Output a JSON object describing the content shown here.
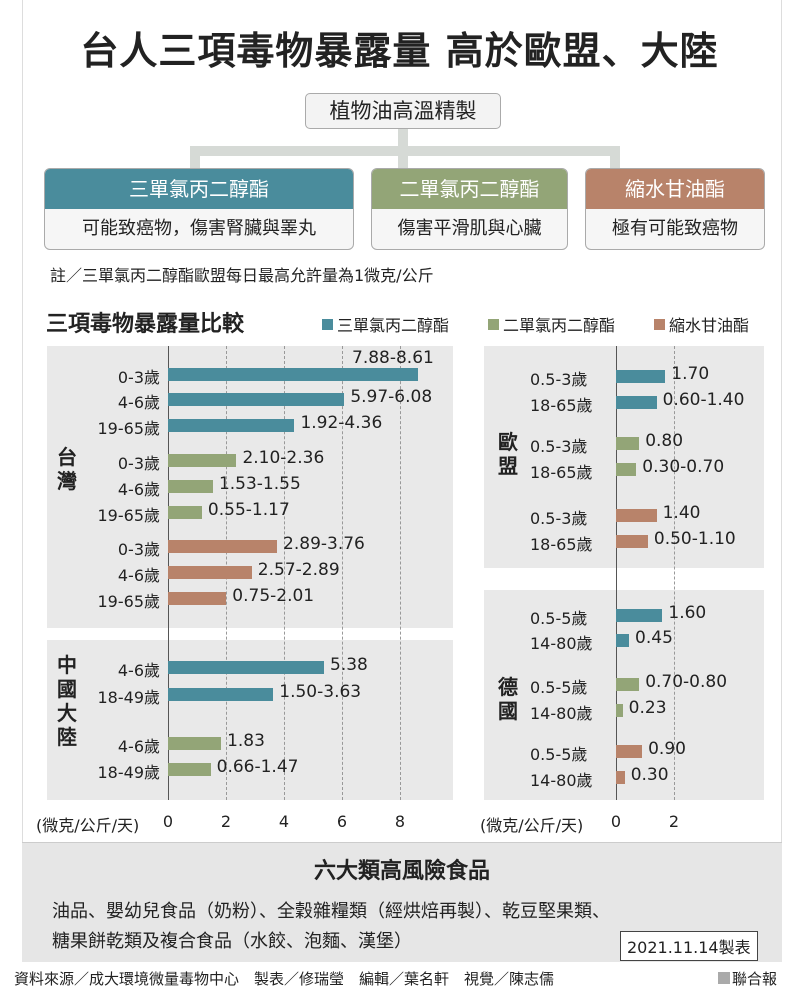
{
  "title": "台人三項毒物暴露量 高於歐盟、大陸",
  "root": "植物油高溫精製",
  "toxins": [
    {
      "name": "三單氯丙二醇酯",
      "effect": "可能致癌物，傷害腎臟與睪丸",
      "color": "#4a8c9c"
    },
    {
      "name": "二單氯丙二醇酯",
      "effect": "傷害平滑肌與心臟",
      "color": "#93a577"
    },
    {
      "name": "縮水甘油酯",
      "effect": "極有可能致癌物",
      "color": "#b8836a"
    }
  ],
  "note": "註／三單氯丙二醇酯歐盟每日最高允許量為1微克/公斤",
  "chart_data": {
    "type": "bar",
    "title": "三項毒物暴露量比較",
    "legend": [
      "三單氯丙二醇酯",
      "二單氯丙二醇酯",
      "縮水甘油酯"
    ],
    "xlabel": "(微克/公斤/天)",
    "panels": [
      {
        "xlim": [
          0,
          8.7
        ],
        "ticks": [
          "0",
          "2",
          "4",
          "6",
          "8"
        ],
        "regions": [
          {
            "name": "台灣",
            "groups": [
              {
                "series": 0,
                "rows": [
                  {
                    "age": "0-3歲",
                    "label": "7.88-8.61",
                    "value": 8.61
                  },
                  {
                    "age": "4-6歲",
                    "label": "5.97-6.08",
                    "value": 6.08
                  },
                  {
                    "age": "19-65歲",
                    "label": "1.92-4.36",
                    "value": 4.36
                  }
                ]
              },
              {
                "series": 1,
                "rows": [
                  {
                    "age": "0-3歲",
                    "label": "2.10-2.36",
                    "value": 2.36
                  },
                  {
                    "age": "4-6歲",
                    "label": "1.53-1.55",
                    "value": 1.55
                  },
                  {
                    "age": "19-65歲",
                    "label": "0.55-1.17",
                    "value": 1.17
                  }
                ]
              },
              {
                "series": 2,
                "rows": [
                  {
                    "age": "0-3歲",
                    "label": "2.89-3.76",
                    "value": 3.76
                  },
                  {
                    "age": "4-6歲",
                    "label": "2.57-2.89",
                    "value": 2.89
                  },
                  {
                    "age": "19-65歲",
                    "label": "0.75-2.01",
                    "value": 2.01
                  }
                ]
              }
            ]
          },
          {
            "name": "中國大陸",
            "groups": [
              {
                "series": 0,
                "rows": [
                  {
                    "age": "4-6歲",
                    "label": "5.38",
                    "value": 5.38
                  },
                  {
                    "age": "18-49歲",
                    "label": "1.50-3.63",
                    "value": 3.63
                  }
                ]
              },
              {
                "series": 1,
                "rows": [
                  {
                    "age": "4-6歲",
                    "label": "1.83",
                    "value": 1.83
                  },
                  {
                    "age": "18-49歲",
                    "label": "0.66-1.47",
                    "value": 1.47
                  }
                ]
              }
            ]
          }
        ]
      },
      {
        "xlim": [
          0,
          2
        ],
        "ticks": [
          "0",
          "2"
        ],
        "regions": [
          {
            "name": "歐盟",
            "groups": [
              {
                "series": 0,
                "rows": [
                  {
                    "age": "0.5-3歲",
                    "label": "1.70",
                    "value": 1.7
                  },
                  {
                    "age": "18-65歲",
                    "label": "0.60-1.40",
                    "value": 1.4
                  }
                ]
              },
              {
                "series": 1,
                "rows": [
                  {
                    "age": "0.5-3歲",
                    "label": "0.80",
                    "value": 0.8
                  },
                  {
                    "age": "18-65歲",
                    "label": "0.30-0.70",
                    "value": 0.7
                  }
                ]
              },
              {
                "series": 2,
                "rows": [
                  {
                    "age": "0.5-3歲",
                    "label": "1.40",
                    "value": 1.4
                  },
                  {
                    "age": "18-65歲",
                    "label": "0.50-1.10",
                    "value": 1.1
                  }
                ]
              }
            ]
          },
          {
            "name": "德國",
            "groups": [
              {
                "series": 0,
                "rows": [
                  {
                    "age": "0.5-5歲",
                    "label": "1.60",
                    "value": 1.6
                  },
                  {
                    "age": "14-80歲",
                    "label": "0.45",
                    "value": 0.45
                  }
                ]
              },
              {
                "series": 1,
                "rows": [
                  {
                    "age": "0.5-5歲",
                    "label": "0.70-0.80",
                    "value": 0.8
                  },
                  {
                    "age": "14-80歲",
                    "label": "0.23",
                    "value": 0.23
                  }
                ]
              },
              {
                "series": 2,
                "rows": [
                  {
                    "age": "0.5-5歲",
                    "label": "0.90",
                    "value": 0.9
                  },
                  {
                    "age": "14-80歲",
                    "label": "0.30",
                    "value": 0.3
                  }
                ]
              }
            ]
          }
        ]
      }
    ]
  },
  "foods": {
    "title": "六大類高風險食品",
    "line1": "油品、嬰幼兒食品（奶粉）、全穀雜糧類（經烘焙再製）、乾豆堅果類、",
    "line2": "糖果餅乾類及複合食品（水餃、泡麵、漢堡）",
    "date": "2021.11.14製表"
  },
  "credits": "資料來源／成大環境微量毒物中心　製表／修瑞瑩　編輯／葉名軒　視覺／陳志儒",
  "brand": "聯合報"
}
